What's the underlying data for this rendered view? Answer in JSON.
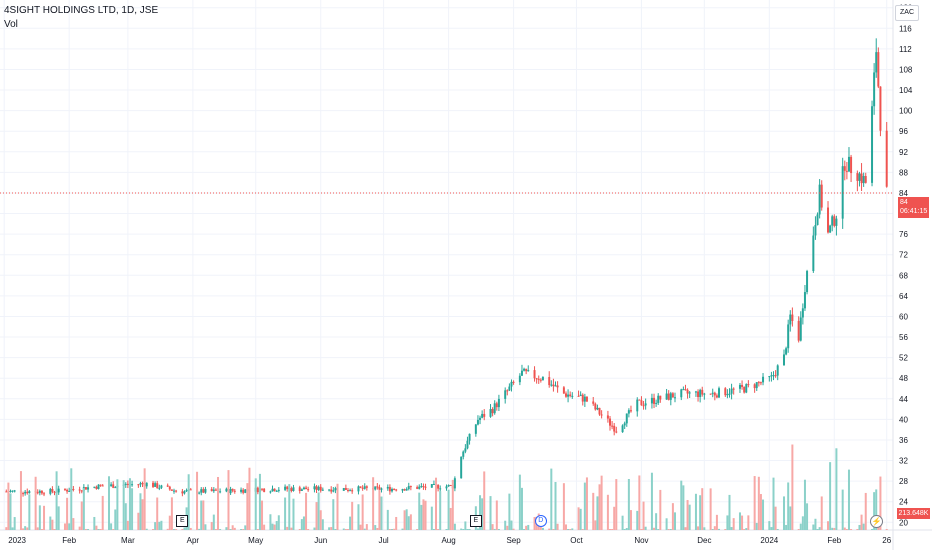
{
  "header": {
    "symbol_title": "4SIGHT HOLDINGS LTD, 1D, JSE",
    "vol_label": "Vol"
  },
  "currency": "ZAC",
  "last_price": {
    "value": "84",
    "countdown": "06:41:15",
    "color": "#ef5350"
  },
  "volume_badge": {
    "value": "213.648K",
    "color": "#ef5350"
  },
  "events": [
    {
      "type": "earnings",
      "label": "E",
      "date": "2023-03-27"
    },
    {
      "type": "earnings",
      "label": "E",
      "date": "2023-08-14"
    },
    {
      "type": "dividend",
      "label": "D",
      "date": "2023-09-14"
    }
  ],
  "colors": {
    "up": "#26a69a",
    "down": "#ef5350",
    "vol_up": "#8bd1c9",
    "vol_down": "#f7a8a6",
    "grid": "#f0f3fa",
    "axis_line": "#e0e3eb"
  },
  "chart_data": {
    "type": "candlestick",
    "title": "4SIGHT HOLDINGS LTD, 1D, JSE",
    "y_axis": {
      "ticks": [
        20,
        24,
        28,
        32,
        36,
        40,
        44,
        48,
        52,
        56,
        60,
        64,
        68,
        72,
        76,
        80,
        84,
        88,
        92,
        96,
        100,
        104,
        108,
        112,
        116,
        120
      ],
      "range": [
        18.5,
        121.5
      ],
      "position": "right"
    },
    "x_axis": {
      "ticks": [
        "2023",
        "Feb",
        "Mar",
        "Apr",
        "May",
        "Jun",
        "Jul",
        "Aug",
        "Sep",
        "Oct",
        "Nov",
        "Dec",
        "2024",
        "Feb",
        "26"
      ],
      "tick_dates": [
        "2023-01-01",
        "2023-02-01",
        "2023-03-01",
        "2023-04-01",
        "2023-05-01",
        "2023-06-01",
        "2023-07-01",
        "2023-08-01",
        "2023-09-01",
        "2023-10-01",
        "2023-11-01",
        "2023-12-01",
        "2024-01-01",
        "2024-02-01",
        "2024-02-26"
      ],
      "range": [
        "2022-12-30",
        "2024-02-29"
      ]
    },
    "price_path": [
      [
        "2023-01-02",
        26
      ],
      [
        "2023-01-25",
        26
      ],
      [
        "2023-02-15",
        27
      ],
      [
        "2023-03-10",
        27.5
      ],
      [
        "2023-03-25",
        26
      ],
      [
        "2023-04-10",
        26
      ],
      [
        "2023-05-10",
        26.5
      ],
      [
        "2023-06-10",
        26.5
      ],
      [
        "2023-07-05",
        26.5
      ],
      [
        "2023-07-28",
        27
      ],
      [
        "2023-08-03",
        27
      ],
      [
        "2023-08-07",
        33
      ],
      [
        "2023-08-15",
        40
      ],
      [
        "2023-08-22",
        42
      ],
      [
        "2023-08-28",
        45
      ],
      [
        "2023-09-05",
        49
      ],
      [
        "2023-09-15",
        48
      ],
      [
        "2023-09-25",
        45
      ],
      [
        "2023-10-05",
        44
      ],
      [
        "2023-10-20",
        38
      ],
      [
        "2023-10-30",
        43
      ],
      [
        "2023-11-10",
        44
      ],
      [
        "2023-11-20",
        45
      ],
      [
        "2023-12-05",
        45
      ],
      [
        "2023-12-20",
        46
      ],
      [
        "2024-01-02",
        48
      ],
      [
        "2024-01-08",
        52
      ],
      [
        "2024-01-11",
        60
      ],
      [
        "2024-01-15",
        56
      ],
      [
        "2024-01-18",
        66
      ],
      [
        "2024-01-25",
        84
      ],
      [
        "2024-01-29",
        76
      ],
      [
        "2024-02-02",
        80
      ],
      [
        "2024-02-06",
        90
      ],
      [
        "2024-02-12",
        88
      ],
      [
        "2024-02-16",
        86
      ],
      [
        "2024-02-19",
        100
      ],
      [
        "2024-02-21",
        112
      ],
      [
        "2024-02-23",
        98
      ],
      [
        "2024-02-26",
        84
      ]
    ],
    "volume_scale_note": "relative 0..1"
  }
}
